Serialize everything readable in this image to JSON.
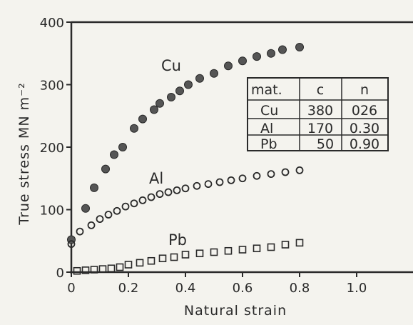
{
  "chart_data": {
    "type": "scatter",
    "title": "",
    "xlabel": "Natural strain",
    "ylabel": "True stress MN m⁻²",
    "xlim": [
      0,
      1.2
    ],
    "ylim": [
      0,
      400
    ],
    "x_ticks": [
      0,
      0.2,
      0.4,
      0.6,
      0.8,
      1.0
    ],
    "x_tick_labels": [
      "0",
      "0.2",
      "0.4",
      "0.6",
      "0.8",
      "1.0"
    ],
    "y_ticks": [
      0,
      100,
      200,
      300,
      400
    ],
    "y_tick_labels": [
      "0",
      "100",
      "200",
      "300",
      "400"
    ],
    "grid": false,
    "series": [
      {
        "name": "Cu",
        "marker": "filled-circle",
        "x": [
          0.0,
          0.05,
          0.08,
          0.12,
          0.15,
          0.18,
          0.22,
          0.25,
          0.29,
          0.31,
          0.35,
          0.38,
          0.41,
          0.45,
          0.5,
          0.55,
          0.6,
          0.65,
          0.7,
          0.74,
          0.8
        ],
        "y": [
          52,
          102,
          135,
          165,
          188,
          200,
          230,
          245,
          260,
          270,
          280,
          290,
          300,
          310,
          318,
          330,
          338,
          345,
          350,
          356,
          360
        ]
      },
      {
        "name": "Al",
        "marker": "open-circle",
        "x": [
          0.0,
          0.03,
          0.07,
          0.1,
          0.13,
          0.16,
          0.19,
          0.22,
          0.25,
          0.28,
          0.31,
          0.34,
          0.37,
          0.4,
          0.44,
          0.48,
          0.52,
          0.56,
          0.6,
          0.65,
          0.7,
          0.75,
          0.8
        ],
        "y": [
          45,
          65,
          75,
          85,
          92,
          98,
          105,
          110,
          115,
          120,
          125,
          128,
          131,
          134,
          138,
          141,
          144,
          147,
          150,
          154,
          157,
          160,
          163
        ]
      },
      {
        "name": "Pb",
        "marker": "open-square",
        "x": [
          0.02,
          0.05,
          0.08,
          0.11,
          0.14,
          0.17,
          0.2,
          0.24,
          0.28,
          0.32,
          0.36,
          0.4,
          0.45,
          0.5,
          0.55,
          0.6,
          0.65,
          0.7,
          0.75,
          0.8
        ],
        "y": [
          2,
          3,
          4,
          5,
          6,
          8,
          12,
          15,
          18,
          22,
          24,
          28,
          30,
          32,
          34,
          36,
          38,
          40,
          44,
          47
        ]
      }
    ],
    "table": {
      "headers": [
        "mat.",
        "c",
        "n"
      ],
      "rows": [
        [
          "Cu",
          "380",
          "026"
        ],
        [
          "Al",
          "170",
          "0.30"
        ],
        [
          "Pb",
          "50",
          "0.90"
        ]
      ]
    },
    "colors": {
      "background": "#f4f3ee",
      "ink": "#2a2a2a",
      "cu_fill": "#555555"
    }
  }
}
